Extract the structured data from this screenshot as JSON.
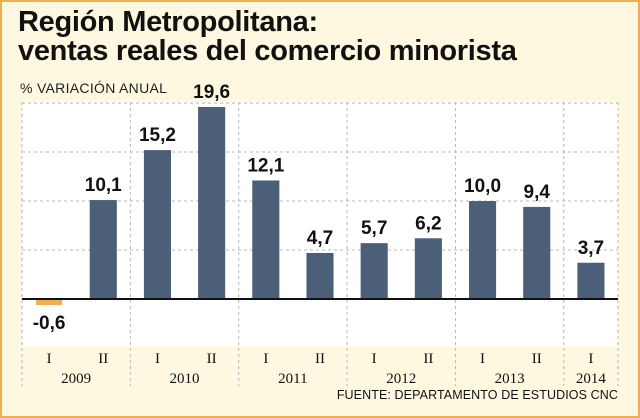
{
  "title_line1": "Región Metropolitana:",
  "title_line2": "ventas reales del comercio minorista",
  "subtitle": "% VARIACIÓN ANUAL",
  "source": "FUENTE: DEPARTAMENTO DE ESTUDIOS CNC",
  "colors": {
    "bar": "#4b5f78",
    "negative_bar": "#f0b050",
    "background": "#fff8e1",
    "border": "#f0b050"
  },
  "chart_data": {
    "type": "bar",
    "title": "Región Metropolitana: ventas reales del comercio minorista",
    "ylabel": "% VARIACIÓN ANUAL",
    "categories": [
      "I",
      "II",
      "I",
      "II",
      "I",
      "II",
      "I",
      "II",
      "I",
      "II",
      "I"
    ],
    "years": [
      {
        "label": "2009",
        "count": 2
      },
      {
        "label": "2010",
        "count": 2
      },
      {
        "label": "2011",
        "count": 2
      },
      {
        "label": "2012",
        "count": 2
      },
      {
        "label": "2013",
        "count": 2
      },
      {
        "label": "2014",
        "count": 1
      }
    ],
    "values": [
      -0.6,
      10.1,
      15.2,
      19.6,
      12.1,
      4.7,
      5.7,
      6.2,
      10.0,
      9.4,
      3.7
    ],
    "value_labels": [
      "-0,6",
      "10,1",
      "15,2",
      "19,6",
      "12,1",
      "4,7",
      "5,7",
      "6,2",
      "10,0",
      "9,4",
      "3,7"
    ],
    "ylim": [
      -5,
      20
    ],
    "grid": true
  }
}
